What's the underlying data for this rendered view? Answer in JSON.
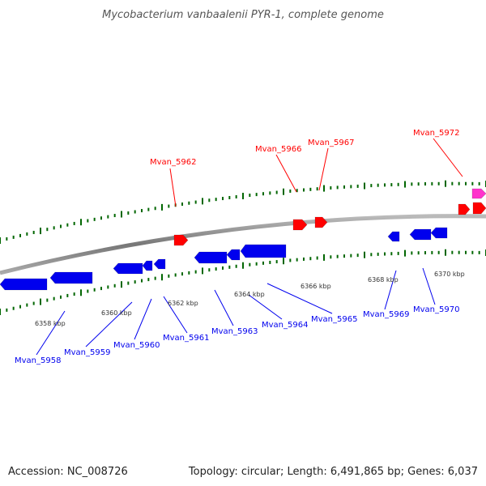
{
  "title": "Mycobacterium vanbaalenii PYR-1, complete genome",
  "footer": {
    "accession": "Accession: NC_008726",
    "stats": "Topology: circular; Length: 6,491,865 bp; Genes: 6,037"
  },
  "colors": {
    "forward": "#ff0000",
    "reverse": "#0000ee",
    "rna": "#ff33cc",
    "tick": "#006600",
    "backbone": "#888888"
  },
  "kbp_ticks": [
    "6358 kbp",
    "6360 kbp",
    "6362 kbp",
    "6364 kbp",
    "6366 kbp",
    "6368 kbp",
    "6370 kbp"
  ],
  "genes_top": [
    {
      "label": "Mvan_5962",
      "color": "#ff0000"
    },
    {
      "label": "Mvan_5966",
      "color": "#ff0000"
    },
    {
      "label": "Mvan_5967",
      "color": "#ff0000"
    },
    {
      "label": "Mvan_5972",
      "color": "#ff0000"
    }
  ],
  "genes_bottom": [
    {
      "label": "Mvan_5958",
      "color": "#0000ee"
    },
    {
      "label": "Mvan_5959",
      "color": "#0000ee"
    },
    {
      "label": "Mvan_5960",
      "color": "#0000ee"
    },
    {
      "label": "Mvan_5961",
      "color": "#0000ee"
    },
    {
      "label": "Mvan_5963",
      "color": "#0000ee"
    },
    {
      "label": "Mvan_5964",
      "color": "#0000ee"
    },
    {
      "label": "Mvan_5965",
      "color": "#0000ee"
    },
    {
      "label": "Mvan_5969",
      "color": "#0000ee"
    },
    {
      "label": "Mvan_5970",
      "color": "#0000ee"
    }
  ]
}
